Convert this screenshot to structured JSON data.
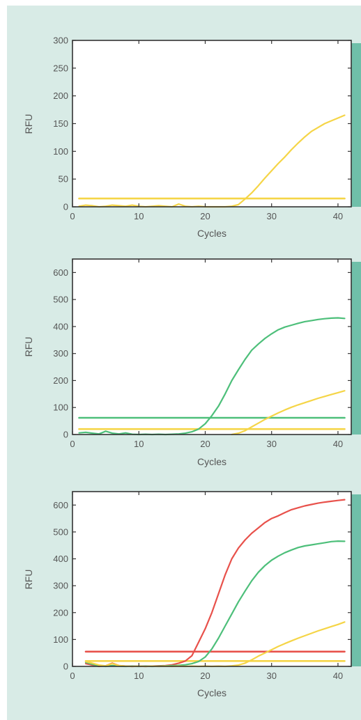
{
  "colors": {
    "background": "#d8ebe6",
    "accent_bar": "#6fbfa9",
    "plot_bg": "#ffffff",
    "frame": "#333333",
    "yellow": "#f5d547",
    "green": "#4dbf7a",
    "red": "#e8514b"
  },
  "chart_data": [
    {
      "type": "line",
      "title": "",
      "xlabel": "Cycles",
      "ylabel": "RFU",
      "xlim": [
        0,
        42
      ],
      "ylim": [
        0,
        300
      ],
      "xticks": [
        0,
        10,
        20,
        30,
        40
      ],
      "yticks": [
        0,
        50,
        100,
        150,
        200,
        250,
        300
      ],
      "grid": false,
      "series": [
        {
          "color": "#f5d547",
          "kind": "threshold",
          "x": [
            1,
            41
          ],
          "y": [
            15,
            15
          ]
        },
        {
          "color": "#f5d547",
          "kind": "curve",
          "x": [
            1,
            2,
            3,
            4,
            5,
            6,
            7,
            8,
            9,
            10,
            11,
            12,
            13,
            14,
            15,
            16,
            17,
            18,
            19,
            20,
            21,
            22,
            23,
            24,
            25,
            26,
            27,
            28,
            29,
            30,
            31,
            32,
            33,
            34,
            35,
            36,
            37,
            38,
            39,
            40,
            41
          ],
          "y": [
            1,
            3,
            2,
            0,
            1,
            3,
            2,
            1,
            3,
            1,
            0,
            1,
            2,
            1,
            0,
            5,
            1,
            0,
            1,
            0,
            0,
            0,
            0,
            1,
            4,
            14,
            25,
            38,
            52,
            65,
            78,
            90,
            103,
            115,
            126,
            136,
            143,
            150,
            155,
            160,
            165
          ]
        }
      ]
    },
    {
      "type": "line",
      "title": "",
      "xlabel": "Cycles",
      "ylabel": "RFU",
      "xlim": [
        0,
        42
      ],
      "ylim": [
        0,
        650
      ],
      "xticks": [
        0,
        10,
        20,
        30,
        40
      ],
      "yticks": [
        0,
        100,
        200,
        300,
        400,
        500,
        600
      ],
      "grid": false,
      "series": [
        {
          "color": "#4dbf7a",
          "kind": "threshold",
          "x": [
            1,
            41
          ],
          "y": [
            62,
            62
          ]
        },
        {
          "color": "#f5d547",
          "kind": "threshold",
          "x": [
            1,
            41
          ],
          "y": [
            20,
            20
          ]
        },
        {
          "color": "#4dbf7a",
          "kind": "curve",
          "x": [
            1,
            2,
            3,
            4,
            5,
            6,
            7,
            8,
            9,
            10,
            11,
            12,
            13,
            14,
            15,
            16,
            17,
            18,
            19,
            20,
            21,
            22,
            23,
            24,
            25,
            26,
            27,
            28,
            29,
            30,
            31,
            32,
            33,
            34,
            35,
            36,
            37,
            38,
            39,
            40,
            41
          ],
          "y": [
            6,
            8,
            5,
            2,
            12,
            5,
            2,
            6,
            1,
            0,
            1,
            0,
            1,
            0,
            1,
            2,
            5,
            10,
            20,
            40,
            70,
            105,
            150,
            200,
            240,
            278,
            312,
            335,
            356,
            373,
            388,
            398,
            405,
            412,
            418,
            422,
            426,
            429,
            431,
            432,
            430
          ]
        },
        {
          "color": "#f5d547",
          "kind": "curve",
          "x": [
            24,
            25,
            26,
            27,
            28,
            29,
            30,
            31,
            32,
            33,
            34,
            35,
            36,
            37,
            38,
            39,
            40,
            41
          ],
          "y": [
            0,
            5,
            14,
            28,
            42,
            56,
            68,
            80,
            91,
            101,
            110,
            118,
            126,
            134,
            141,
            148,
            155,
            162
          ]
        }
      ]
    },
    {
      "type": "line",
      "title": "",
      "xlabel": "Cycles",
      "ylabel": "RFU",
      "xlim": [
        0,
        42
      ],
      "ylim": [
        0,
        650
      ],
      "xticks": [
        0,
        10,
        20,
        30,
        40
      ],
      "yticks": [
        0,
        100,
        200,
        300,
        400,
        500,
        600
      ],
      "grid": false,
      "series": [
        {
          "color": "#e8514b",
          "kind": "threshold",
          "x": [
            2,
            41
          ],
          "y": [
            55,
            55
          ]
        },
        {
          "color": "#f5d547",
          "kind": "threshold",
          "x": [
            2,
            41
          ],
          "y": [
            20,
            20
          ]
        },
        {
          "color": "#e8514b",
          "kind": "curve",
          "x": [
            2,
            3,
            4,
            5,
            6,
            7,
            8,
            9,
            10,
            11,
            12,
            13,
            14,
            15,
            16,
            17,
            18,
            19,
            20,
            21,
            22,
            23,
            24,
            25,
            26,
            27,
            28,
            29,
            30,
            31,
            32,
            33,
            34,
            35,
            36,
            37,
            38,
            39,
            40,
            41
          ],
          "y": [
            10,
            5,
            0,
            2,
            12,
            3,
            1,
            0,
            1,
            0,
            1,
            2,
            3,
            6,
            12,
            20,
            40,
            90,
            140,
            200,
            270,
            340,
            400,
            440,
            470,
            495,
            515,
            535,
            550,
            560,
            572,
            583,
            590,
            597,
            602,
            607,
            611,
            614,
            617,
            620
          ]
        },
        {
          "color": "#4dbf7a",
          "kind": "curve",
          "x": [
            2,
            3,
            4,
            5,
            6,
            7,
            8,
            9,
            10,
            11,
            12,
            13,
            14,
            15,
            16,
            17,
            18,
            19,
            20,
            21,
            22,
            23,
            24,
            25,
            26,
            27,
            28,
            29,
            30,
            31,
            32,
            33,
            34,
            35,
            36,
            37,
            38,
            39,
            40,
            41
          ],
          "y": [
            15,
            8,
            2,
            0,
            3,
            1,
            0,
            1,
            0,
            1,
            0,
            1,
            2,
            3,
            4,
            6,
            10,
            18,
            35,
            65,
            105,
            150,
            195,
            240,
            280,
            318,
            350,
            375,
            395,
            410,
            423,
            433,
            442,
            448,
            452,
            456,
            460,
            464,
            466,
            465
          ]
        },
        {
          "color": "#f5d547",
          "kind": "curve",
          "x": [
            2,
            3,
            4,
            5,
            6,
            7,
            8,
            9,
            10,
            11,
            12,
            13,
            14,
            15,
            16,
            17,
            18,
            19,
            20,
            21,
            22,
            23,
            24,
            25,
            26,
            27,
            28,
            29,
            30,
            31,
            32,
            33,
            34,
            35,
            36,
            37,
            38,
            39,
            40,
            41
          ],
          "y": [
            18,
            12,
            5,
            2,
            10,
            3,
            1,
            0,
            1,
            0,
            1,
            0,
            1,
            0,
            1,
            0,
            1,
            0,
            1,
            0,
            1,
            0,
            2,
            5,
            12,
            24,
            38,
            50,
            62,
            74,
            85,
            95,
            105,
            114,
            123,
            132,
            140,
            148,
            156,
            165
          ]
        }
      ]
    }
  ]
}
